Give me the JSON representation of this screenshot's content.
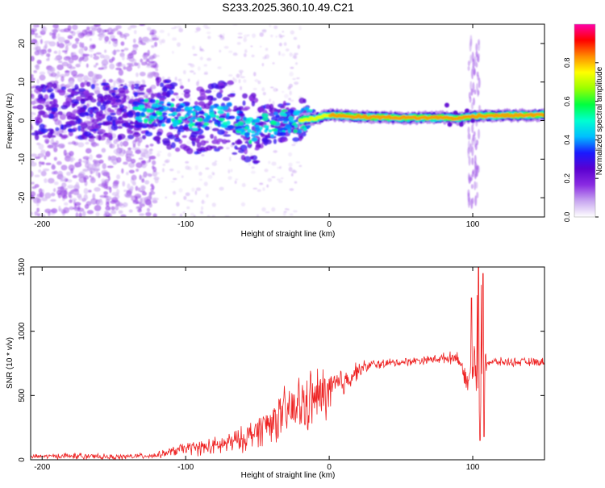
{
  "title": "S233.2025.360.10.49.C21",
  "chart_data": [
    {
      "type": "heatmap",
      "title": "S233.2025.360.10.49.C21",
      "xlabel": "Height of straight line (km)",
      "ylabel": "Frequency (Hz)",
      "xlim": [
        -208,
        150
      ],
      "ylim": [
        -25,
        25
      ],
      "xticks": [
        -200,
        -100,
        0,
        100
      ],
      "yticks": [
        -20,
        -10,
        0,
        10,
        20
      ],
      "colorbar": {
        "label": "Normalized spectral amplitude",
        "range": [
          0,
          1
        ],
        "ticks": [
          0.0,
          0.2,
          0.4,
          0.6,
          0.8
        ],
        "tick_labels": [
          "0.0",
          "0.2",
          "0.4",
          "0.6",
          "0.8"
        ],
        "colors": [
          "#ffffff",
          "#c8a6f0",
          "#8a2be2",
          "#5a00d0",
          "#1a1aff",
          "#00bfff",
          "#00ffd0",
          "#00ff40",
          "#9aff00",
          "#ffff00",
          "#ff8c00",
          "#ff0000",
          "#ff00aa"
        ]
      },
      "ridge": [
        [
          -130,
          2.5
        ],
        [
          -110,
          1.5
        ],
        [
          -90,
          0.5
        ],
        [
          -70,
          1.5
        ],
        [
          -55,
          -2.5
        ],
        [
          -40,
          -1
        ],
        [
          -25,
          0
        ],
        [
          -10,
          0.5
        ],
        [
          0,
          1.5
        ],
        [
          20,
          1
        ],
        [
          60,
          0.7
        ],
        [
          80,
          0.8
        ],
        [
          90,
          0.5
        ],
        [
          100,
          1.2
        ],
        [
          150,
          1.5
        ]
      ]
    },
    {
      "type": "line",
      "xlabel": "Height of straight line (km)",
      "ylabel": "SNR (10 * v/v)",
      "xlim": [
        -208,
        150
      ],
      "ylim": [
        0,
        1500
      ],
      "xticks": [
        -200,
        -100,
        0,
        100
      ],
      "yticks": [
        0,
        500,
        1000,
        1500
      ],
      "series": [
        {
          "name": "SNR",
          "color": "#ee2222",
          "envelope_x": [
            -208,
            -180,
            -150,
            -120,
            -100,
            -80,
            -60,
            -40,
            -20,
            -5,
            10,
            20,
            30,
            50,
            70,
            80,
            90,
            95,
            100,
            104,
            106,
            108,
            110,
            120,
            150
          ],
          "envelope_y": [
            25,
            30,
            20,
            35,
            90,
            100,
            160,
            300,
            420,
            500,
            600,
            700,
            740,
            760,
            780,
            790,
            800,
            600,
            700,
            800,
            780,
            700,
            760,
            760,
            760
          ],
          "noise_amplitude": [
            20,
            30,
            25,
            30,
            60,
            90,
            120,
            200,
            300,
            280,
            150,
            80,
            50,
            40,
            40,
            50,
            60,
            100,
            200,
            700,
            700,
            500,
            40,
            40,
            40
          ],
          "spikes": [
            [
              99,
              1260
            ],
            [
              104,
              1500
            ],
            [
              105,
              150
            ],
            [
              107,
              1450
            ],
            [
              108,
              180
            ],
            [
              97,
              620
            ]
          ]
        }
      ]
    }
  ]
}
